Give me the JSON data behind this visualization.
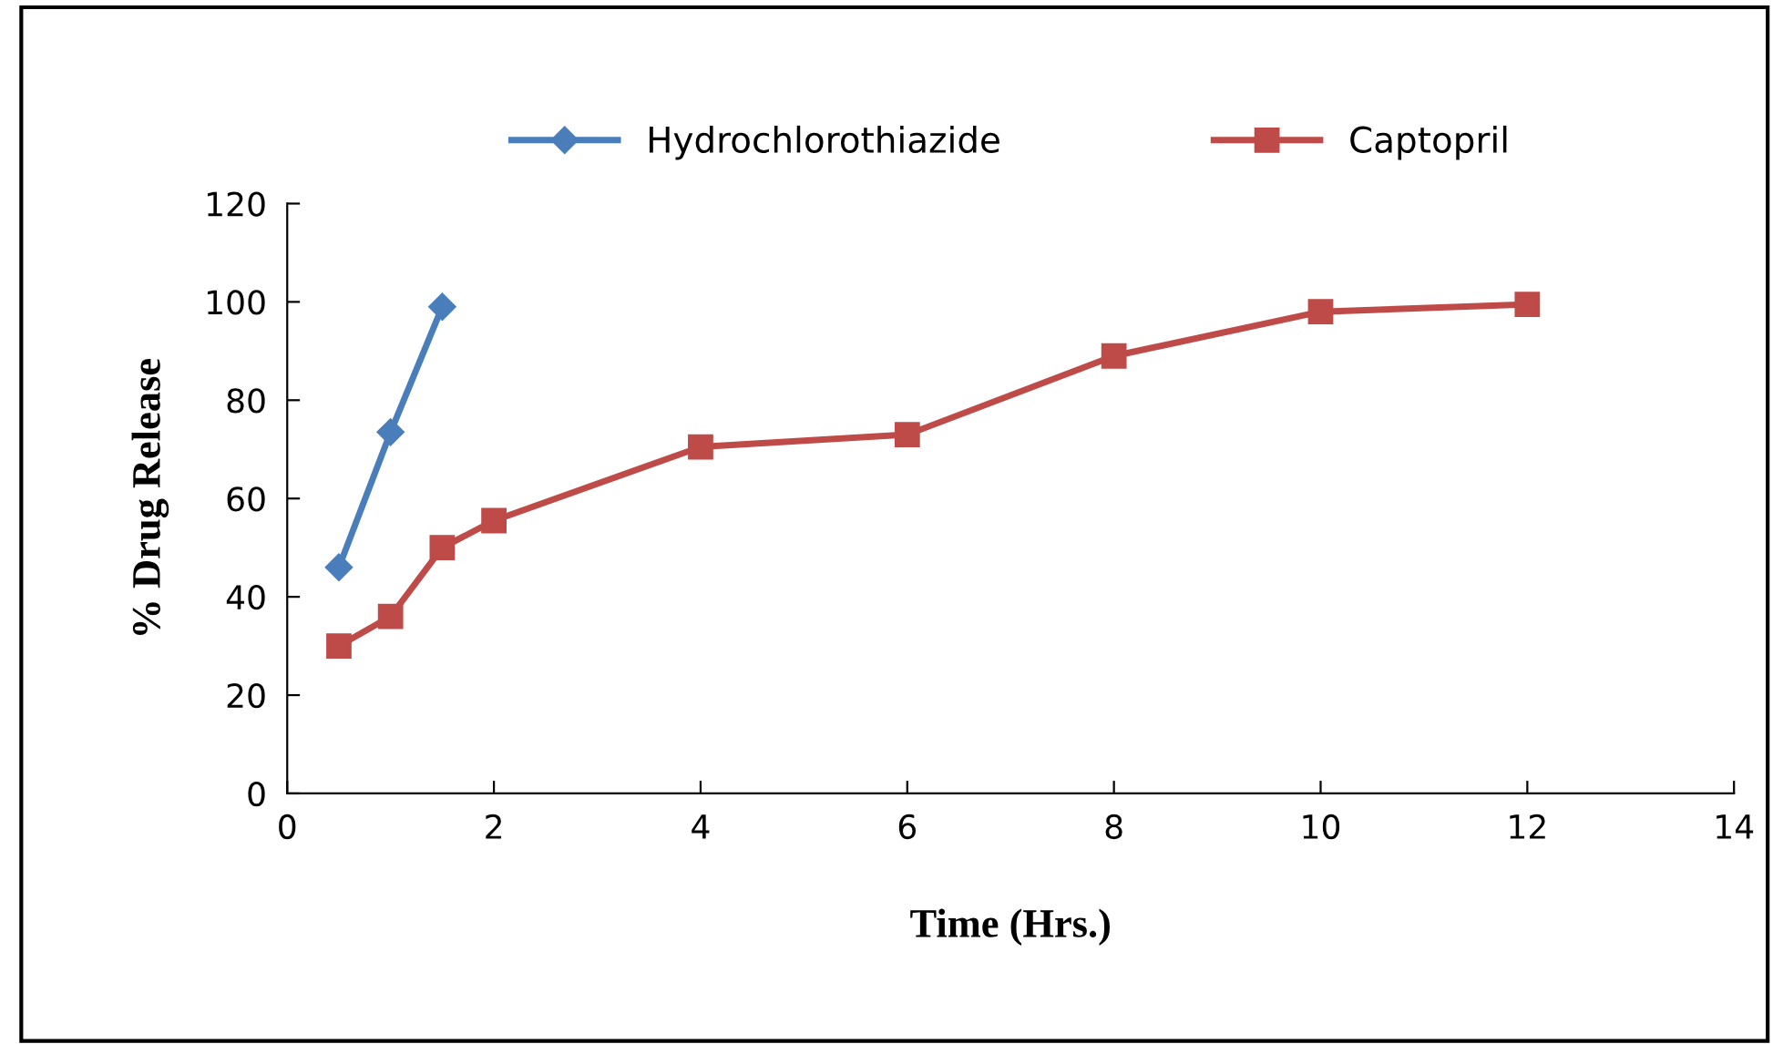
{
  "chart_data": {
    "type": "line",
    "xlabel": "Time (Hrs.)",
    "ylabel": "% Drug Release",
    "xlim": [
      0,
      14
    ],
    "xticks": [
      0,
      2,
      4,
      6,
      8,
      10,
      12,
      14
    ],
    "ylim": [
      0,
      120
    ],
    "yticks": [
      0,
      20,
      40,
      60,
      80,
      100,
      120
    ],
    "grid": false,
    "legend": "top",
    "series": [
      {
        "name": "Hydrochlorothiazide",
        "color": "#4a7ebb",
        "marker": "diamond",
        "x": [
          0.5,
          1,
          1.5
        ],
        "values": [
          46,
          73.5,
          99
        ]
      },
      {
        "name": "Captopril",
        "color": "#be4b48",
        "marker": "square",
        "x": [
          0.5,
          1,
          1.5,
          2,
          4,
          6,
          8,
          10,
          12
        ],
        "values": [
          30,
          36,
          50,
          55.5,
          70.5,
          73,
          89,
          98,
          99.5
        ]
      }
    ]
  }
}
